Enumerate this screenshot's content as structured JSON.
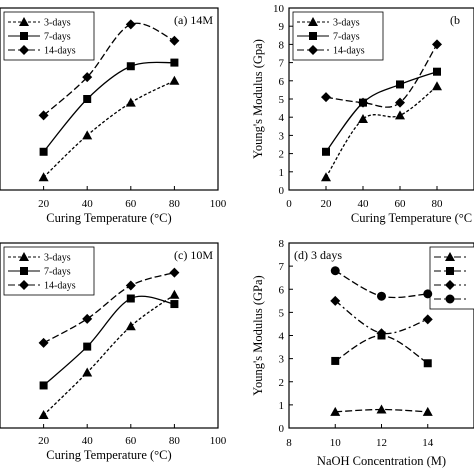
{
  "chart_data": [
    {
      "type": "line",
      "title": "(a) 14M",
      "xlabel": "Curing Temperature (°C)",
      "ylabel": "",
      "x": [
        20,
        40,
        60,
        80
      ],
      "xticks": [
        "20",
        "40",
        "60",
        "80",
        "100"
      ],
      "xlim": [
        0,
        100
      ],
      "ylim": [
        0,
        10
      ],
      "series": [
        {
          "name": "3-days",
          "values": [
            0.7,
            3.0,
            4.8,
            6.0
          ],
          "marker": "triangle",
          "dash": "short"
        },
        {
          "name": "7-days",
          "values": [
            2.1,
            5.0,
            6.8,
            7.0
          ],
          "marker": "square",
          "dash": "solid"
        },
        {
          "name": "14-days",
          "values": [
            4.1,
            6.2,
            9.1,
            8.2
          ],
          "marker": "diamond",
          "dash": "long"
        }
      ],
      "legend": "top-left",
      "grid": false
    },
    {
      "type": "line",
      "title": "(b",
      "xlabel": "Curing Temperature (°C",
      "ylabel": "Young's Modulus (Gpa)",
      "x": [
        20,
        40,
        60,
        80
      ],
      "xticks": [
        "0",
        "20",
        "40",
        "60",
        "80"
      ],
      "yticks": [
        "0",
        "1",
        "2",
        "3",
        "4",
        "5",
        "6",
        "7",
        "8",
        "9",
        "10"
      ],
      "xlim": [
        0,
        100
      ],
      "ylim": [
        0,
        10
      ],
      "series": [
        {
          "name": "3-days",
          "values": [
            0.7,
            3.9,
            4.1,
            5.7
          ],
          "marker": "triangle",
          "dash": "short"
        },
        {
          "name": "7-days",
          "values": [
            2.1,
            4.8,
            5.8,
            6.5
          ],
          "marker": "square",
          "dash": "solid"
        },
        {
          "name": "14-days",
          "values": [
            5.1,
            4.8,
            4.8,
            8.0
          ],
          "marker": "diamond",
          "dash": "long"
        }
      ],
      "legend": "top-left",
      "grid": false
    },
    {
      "type": "line",
      "title": "(c) 10M",
      "xlabel": "Curing Temperature (°C)",
      "ylabel": "",
      "x": [
        20,
        40,
        60,
        80
      ],
      "xticks": [
        "20",
        "40",
        "60",
        "80",
        "100"
      ],
      "xlim": [
        0,
        100
      ],
      "ylim": [
        0,
        10
      ],
      "series": [
        {
          "name": "3-days",
          "values": [
            0.7,
            3.0,
            5.5,
            7.2
          ],
          "marker": "triangle",
          "dash": "short"
        },
        {
          "name": "7-days",
          "values": [
            2.3,
            4.4,
            7.0,
            6.7
          ],
          "marker": "square",
          "dash": "solid"
        },
        {
          "name": "14-days",
          "values": [
            4.6,
            5.9,
            7.7,
            8.4
          ],
          "marker": "diamond",
          "dash": "long"
        }
      ],
      "legend": "top-left",
      "grid": false
    },
    {
      "type": "line",
      "title": "(d) 3 days",
      "xlabel": "NaOH Concentration (M)",
      "ylabel": "Young's Modulus (GPa)",
      "x": [
        10,
        12,
        14
      ],
      "xticks": [
        "8",
        "10",
        "12",
        "14"
      ],
      "yticks": [
        "0",
        "1",
        "2",
        "3",
        "4",
        "5",
        "6",
        "7",
        "8"
      ],
      "xlim": [
        8,
        16
      ],
      "ylim": [
        0,
        8
      ],
      "series": [
        {
          "name": "",
          "values": [
            0.7,
            0.8,
            0.7
          ],
          "marker": "triangle",
          "dash": "long"
        },
        {
          "name": "",
          "values": [
            2.9,
            4.0,
            2.8
          ],
          "marker": "square",
          "dash": "long"
        },
        {
          "name": "",
          "values": [
            5.5,
            4.1,
            4.7
          ],
          "marker": "diamond",
          "dash": "dashdot"
        },
        {
          "name": "",
          "values": [
            6.8,
            5.7,
            5.8
          ],
          "marker": "circle",
          "dash": "long"
        }
      ],
      "legend": "top-right",
      "grid": false
    }
  ]
}
